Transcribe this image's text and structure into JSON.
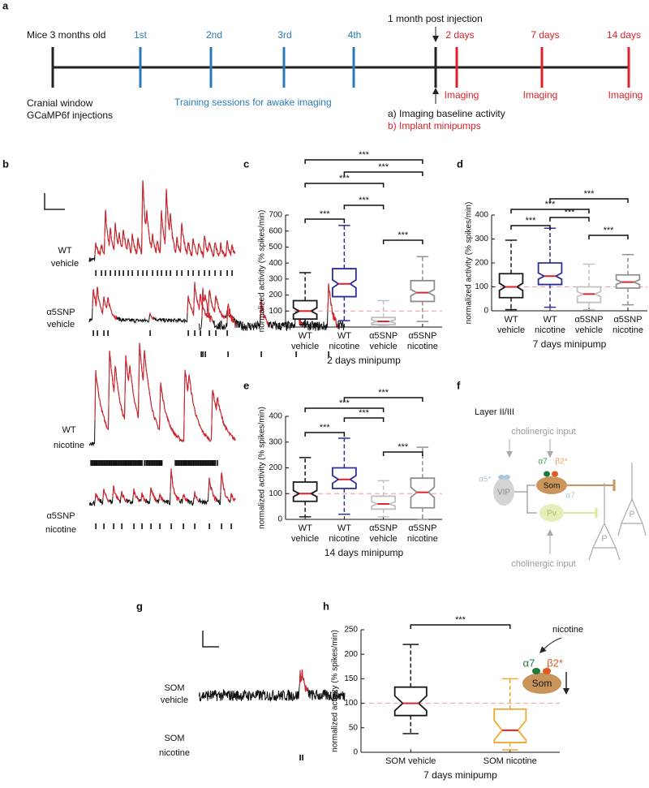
{
  "panel_letters": [
    "a",
    "b",
    "c",
    "d",
    "e",
    "f",
    "g",
    "h"
  ],
  "timeline": {
    "start_label": "Mice 3 months old",
    "start_note": [
      "Cranial window",
      "GCaMP6f injections"
    ],
    "sessions": [
      "1st",
      "2nd",
      "3rd",
      "4th"
    ],
    "sessions_note": "Training sessions for awake imaging",
    "post_injection": "1 month post injection",
    "baseline_steps": [
      "a) Imaging baseline activity",
      "b) Implant minipumps"
    ],
    "time_points": [
      "2 days",
      "7 days",
      "14 days"
    ],
    "imaging_labels": [
      "Imaging",
      "Imaging",
      "Imaging"
    ]
  },
  "traces": {
    "labels": [
      [
        "WT",
        "vehicle"
      ],
      [
        "α5SNP",
        "vehicle"
      ],
      [
        "WT",
        "nicotine"
      ],
      [
        "α5SNP",
        "nicotine"
      ]
    ]
  },
  "som_traces": {
    "labels": [
      [
        "SOM",
        "vehicle"
      ],
      [
        "SOM",
        "nicotine"
      ]
    ]
  },
  "diagram": {
    "layer": "Layer II/III",
    "inputs": [
      "cholinergic input",
      "cholinergic input"
    ],
    "cells": [
      "VIP",
      "Som",
      "Pv",
      "P",
      "P"
    ],
    "receptors": [
      "α5*",
      "α7",
      "β2*",
      "α7"
    ]
  },
  "inset": {
    "stimulus": "nicotine",
    "receptors": [
      "α7",
      "β2*"
    ],
    "cell": "Som"
  },
  "chart_data": [
    {
      "type": "box",
      "ylabel": "normalized activity (% spikes/min)",
      "xlabel": "2 days minipump",
      "categories": [
        [
          "WT",
          "vehicle"
        ],
        [
          "WT",
          "nicotine"
        ],
        [
          "α5SNP",
          "vehicle"
        ],
        [
          "α5SNP",
          "nicotine"
        ]
      ],
      "colors": [
        "#1a1a1a",
        "#2c2f9a",
        "#c0c0c0",
        "#8f8f8f"
      ],
      "boxes": [
        {
          "whisker_low": 15,
          "q1": 50,
          "notch_low": 80,
          "median": 100,
          "notch_high": 120,
          "q3": 165,
          "whisker_high": 340
        },
        {
          "whisker_low": 40,
          "q1": 190,
          "notch_low": 245,
          "median": 270,
          "notch_high": 295,
          "q3": 365,
          "whisker_high": 635
        },
        {
          "whisker_low": 5,
          "q1": 15,
          "notch_low": 25,
          "median": 35,
          "notch_high": 45,
          "q3": 60,
          "whisker_high": 165
        },
        {
          "whisker_low": 35,
          "q1": 160,
          "notch_low": 195,
          "median": 215,
          "notch_high": 235,
          "q3": 290,
          "whisker_high": 440
        }
      ],
      "ylim": [
        0,
        700
      ],
      "yticks": [
        0,
        100,
        200,
        300,
        400,
        500,
        600,
        700
      ],
      "reference_line": 100,
      "reference_color": "#f29a9a",
      "median_color": "#e0202a",
      "annotations": [
        "***",
        "***",
        "***",
        "***",
        "***",
        "***"
      ]
    },
    {
      "type": "box",
      "ylabel": "normalized activity (% spikes/min)",
      "xlabel": "7 days minipump",
      "categories": [
        [
          "WT",
          "vehicle"
        ],
        [
          "WT",
          "nicotine"
        ],
        [
          "α5SNP",
          "vehicle"
        ],
        [
          "α5SNP",
          "nicotine"
        ]
      ],
      "colors": [
        "#1a1a1a",
        "#2c2f9a",
        "#c0c0c0",
        "#8f8f8f"
      ],
      "boxes": [
        {
          "whisker_low": 5,
          "q1": 55,
          "notch_low": 85,
          "median": 100,
          "notch_high": 115,
          "q3": 155,
          "whisker_high": 295
        },
        {
          "whisker_low": 15,
          "q1": 110,
          "notch_low": 132,
          "median": 145,
          "notch_high": 158,
          "q3": 200,
          "whisker_high": 345
        },
        {
          "whisker_low": 5,
          "q1": 35,
          "notch_low": 60,
          "median": 70,
          "notch_high": 80,
          "q3": 100,
          "whisker_high": 195
        },
        {
          "whisker_low": 25,
          "q1": 95,
          "notch_low": 110,
          "median": 120,
          "notch_high": 130,
          "q3": 150,
          "whisker_high": 235
        }
      ],
      "ylim": [
        0,
        400
      ],
      "yticks": [
        0,
        100,
        200,
        300,
        400
      ],
      "reference_line": 100,
      "reference_color": "#f29a9a",
      "median_color": "#e0202a",
      "annotations": [
        "***",
        "***",
        "***",
        "***",
        "***"
      ]
    },
    {
      "type": "box",
      "ylabel": "normalized activity (% spikes/min)",
      "xlabel": "14 days minipump",
      "categories": [
        [
          "WT",
          "vehicle"
        ],
        [
          "WT",
          "nicotine"
        ],
        [
          "α5SNP",
          "vehicle"
        ],
        [
          "α5SNP",
          "nicotine"
        ]
      ],
      "colors": [
        "#1a1a1a",
        "#2c2f9a",
        "#c0c0c0",
        "#8f8f8f"
      ],
      "boxes": [
        {
          "whisker_low": 10,
          "q1": 70,
          "notch_low": 88,
          "median": 100,
          "notch_high": 112,
          "q3": 145,
          "whisker_high": 240
        },
        {
          "whisker_low": 20,
          "q1": 120,
          "notch_low": 140,
          "median": 155,
          "notch_high": 170,
          "q3": 200,
          "whisker_high": 315
        },
        {
          "whisker_low": 10,
          "q1": 40,
          "notch_low": 52,
          "median": 60,
          "notch_high": 68,
          "q3": 90,
          "whisker_high": 150
        },
        {
          "whisker_low": 0,
          "q1": 45,
          "notch_low": 85,
          "median": 105,
          "notch_high": 125,
          "q3": 160,
          "whisker_high": 280
        }
      ],
      "ylim": [
        0,
        400
      ],
      "yticks": [
        0,
        100,
        200,
        300,
        400
      ],
      "reference_line": 100,
      "reference_color": "#f29a9a",
      "median_color": "#e0202a",
      "annotations": [
        "***",
        "***",
        "***",
        "***",
        "***"
      ]
    },
    {
      "type": "box",
      "ylabel": "normalized activity (% spikes/min)",
      "xlabel": "7 days minipump",
      "categories": [
        "SOM vehicle",
        "SOM nicotine"
      ],
      "colors": [
        "#1a1a1a",
        "#f0a830"
      ],
      "boxes": [
        {
          "whisker_low": 38,
          "q1": 75,
          "notch_low": 85,
          "median": 100,
          "notch_high": 115,
          "q3": 133,
          "whisker_high": 220
        },
        {
          "whisker_low": 5,
          "q1": 20,
          "notch_low": 25,
          "median": 45,
          "notch_high": 65,
          "q3": 88,
          "whisker_high": 150
        }
      ],
      "ylim": [
        0,
        250
      ],
      "yticks": [
        0,
        50,
        100,
        150,
        200,
        250
      ],
      "reference_line": 100,
      "reference_color": "#f29a9a",
      "median_color": "#e0202a",
      "annotations": [
        "***"
      ]
    }
  ]
}
